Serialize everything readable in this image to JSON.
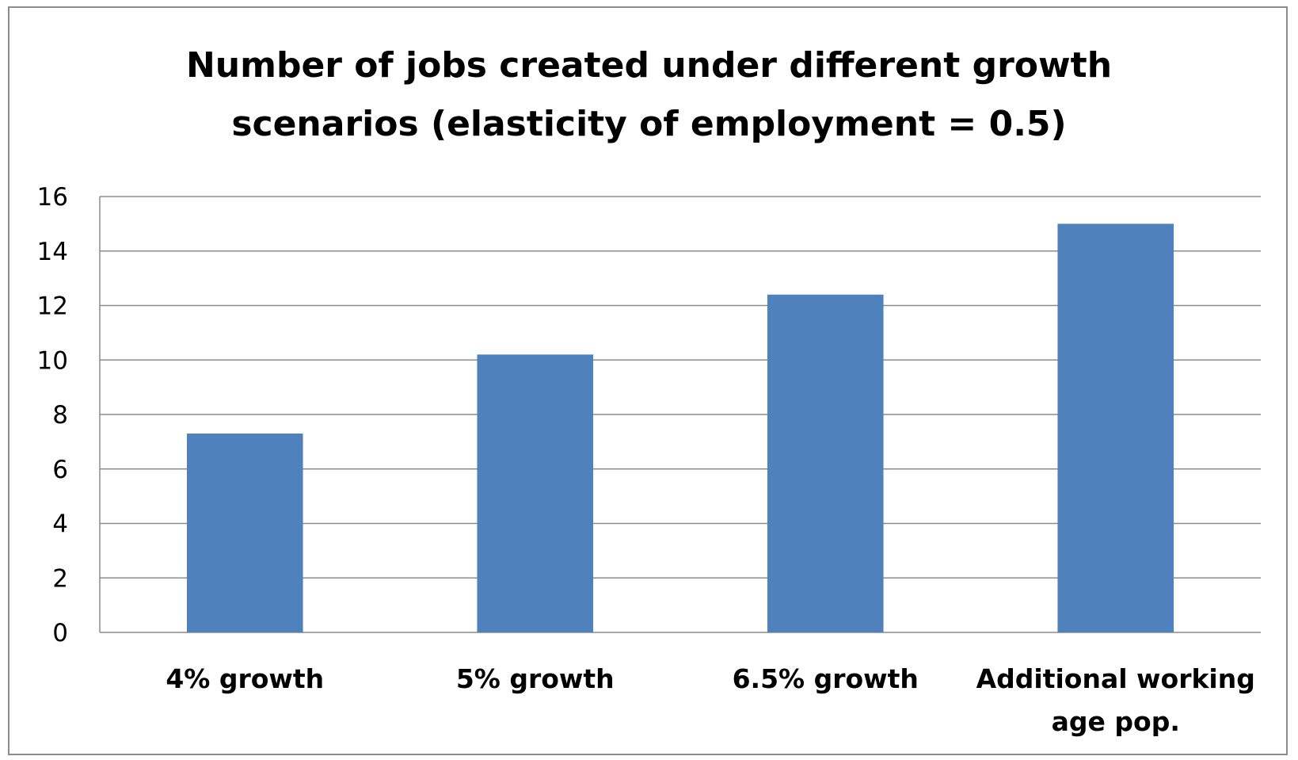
{
  "chart_data": {
    "type": "bar",
    "title_lines": [
      "Number of jobs created under different growth",
      "scenarios (elasticity of employment = 0.5)"
    ],
    "categories": [
      [
        "4% growth"
      ],
      [
        "5% growth"
      ],
      [
        "6.5% growth"
      ],
      [
        "Additional working",
        "age pop."
      ]
    ],
    "values": [
      7.3,
      10.2,
      12.4,
      15.0
    ],
    "xlabel": "",
    "ylabel": "",
    "ylim": [
      0,
      16
    ],
    "yticks": [
      0,
      2,
      4,
      6,
      8,
      10,
      12,
      14,
      16
    ],
    "grid": true,
    "legend": "none",
    "bar_color": "#4F81BD",
    "grid_color": "#8c8c8c"
  }
}
